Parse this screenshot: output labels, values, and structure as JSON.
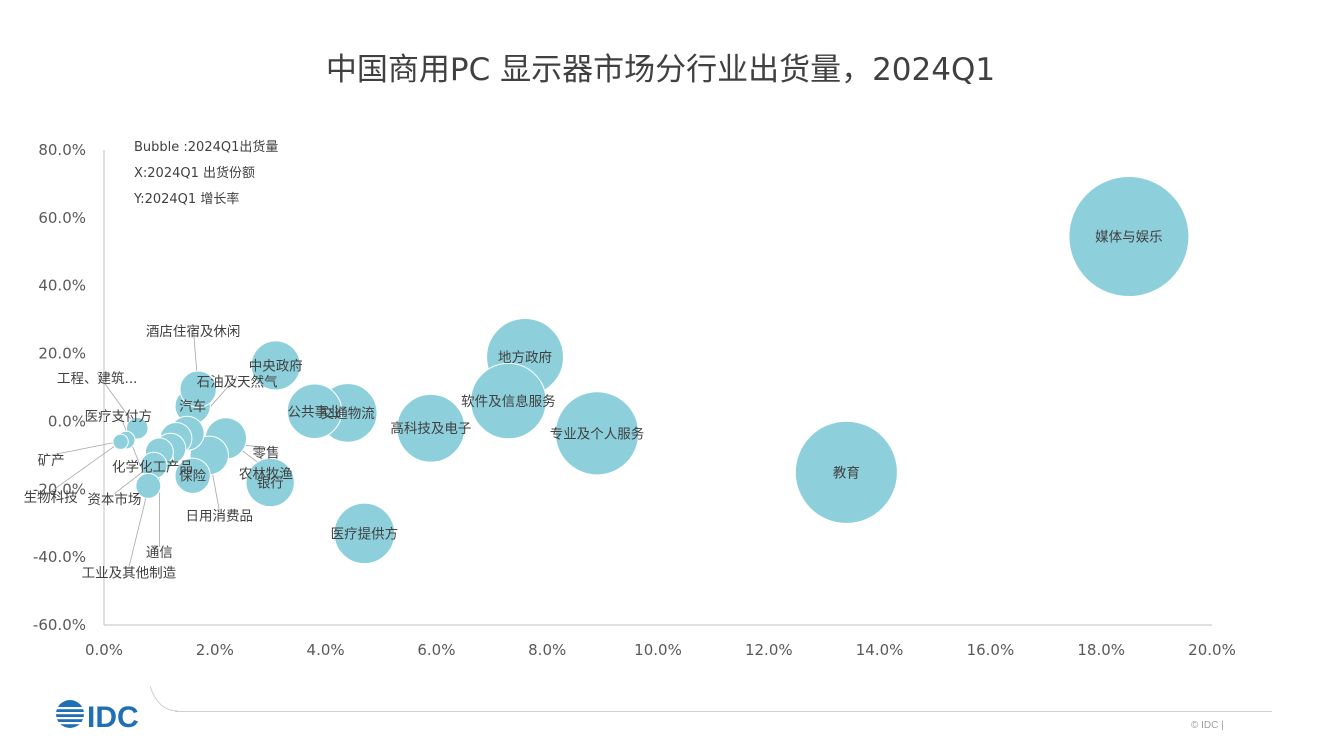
{
  "chart_data": {
    "type": "bubble",
    "title": "中国商用PC 显示器市场分行业出货量，2024Q1",
    "legend_lines": [
      "Bubble :2024Q1出货量",
      "X:2024Q1 出货份额",
      "Y:2024Q1 增长率"
    ],
    "x_ticks": [
      "0.0%",
      "2.0%",
      "4.0%",
      "6.0%",
      "8.0%",
      "10.0%",
      "12.0%",
      "14.0%",
      "16.0%",
      "18.0%",
      "20.0%"
    ],
    "y_ticks": [
      "80.0%",
      "60.0%",
      "40.0%",
      "20.0%",
      "0.0%",
      "-20.0%",
      "-40.0%",
      "-60.0%"
    ],
    "xlim": [
      0,
      20
    ],
    "ylim": [
      -60,
      80
    ],
    "bubble_color": "#8dd0dc",
    "points": [
      {
        "name": "媒体与娱乐",
        "x": 18.5,
        "y": 54.5,
        "size": 18.5
      },
      {
        "name": "教育",
        "x": 13.4,
        "y": -15.0,
        "size": 13.4
      },
      {
        "name": "专业及个人服务",
        "x": 8.9,
        "y": -3.5,
        "size": 8.9
      },
      {
        "name": "地方政府",
        "x": 7.6,
        "y": 19.0,
        "size": 7.6
      },
      {
        "name": "软件及信息服务",
        "x": 7.3,
        "y": 6.0,
        "size": 7.3
      },
      {
        "name": "高科技及电子",
        "x": 5.9,
        "y": -2.0,
        "size": 5.9
      },
      {
        "name": "医疗提供方",
        "x": 4.7,
        "y": -33.0,
        "size": 4.7
      },
      {
        "name": "交通物流",
        "x": 4.4,
        "y": 2.5,
        "size": 4.4
      },
      {
        "name": "公共事业",
        "x": 3.8,
        "y": 3.0,
        "size": 3.8
      },
      {
        "name": "中央政府",
        "x": 3.1,
        "y": 16.5,
        "size": 3.1
      },
      {
        "name": "银行",
        "x": 3.0,
        "y": -18.0,
        "size": 3.0
      },
      {
        "name": "农林牧渔",
        "x": 2.2,
        "y": -5.0,
        "size": 2.2
      },
      {
        "name": "日用消费品",
        "x": 1.9,
        "y": -10.0,
        "size": 1.9
      },
      {
        "name": "汽车",
        "x": 1.6,
        "y": 4.5,
        "size": 1.6
      },
      {
        "name": "酒店住宿及休闲",
        "x": 1.7,
        "y": 9.5,
        "size": 1.7
      },
      {
        "name": "保险",
        "x": 1.6,
        "y": -16.0,
        "size": 1.6
      },
      {
        "name": "石油及天然气",
        "x": 1.5,
        "y": -3.5,
        "size": 1.5
      },
      {
        "name": "零售",
        "x": 1.3,
        "y": -5.0,
        "size": 1.3
      },
      {
        "name": "化学化工产品",
        "x": 1.2,
        "y": -8.0,
        "size": 1.2
      },
      {
        "name": "资本市场",
        "x": 1.0,
        "y": -11.0,
        "size": 1.0
      },
      {
        "name": "通信",
        "x": 1.0,
        "y": -9.0,
        "size": 1.0
      },
      {
        "name": "工业及其他制造",
        "x": 0.9,
        "y": -13.0,
        "size": 0.9
      },
      {
        "name": "工程、建筑...",
        "x": 0.6,
        "y": -2.0,
        "size": 0.6
      },
      {
        "name": "医疗支付方",
        "x": 0.8,
        "y": -19.0,
        "size": 0.8
      },
      {
        "name": "矿产",
        "x": 0.4,
        "y": -5.5,
        "size": 0.4
      },
      {
        "name": "生物科技",
        "x": 0.3,
        "y": -6.0,
        "size": 0.3
      }
    ]
  },
  "footer": {
    "logo_text": "IDC",
    "copyright": "© IDC |"
  }
}
